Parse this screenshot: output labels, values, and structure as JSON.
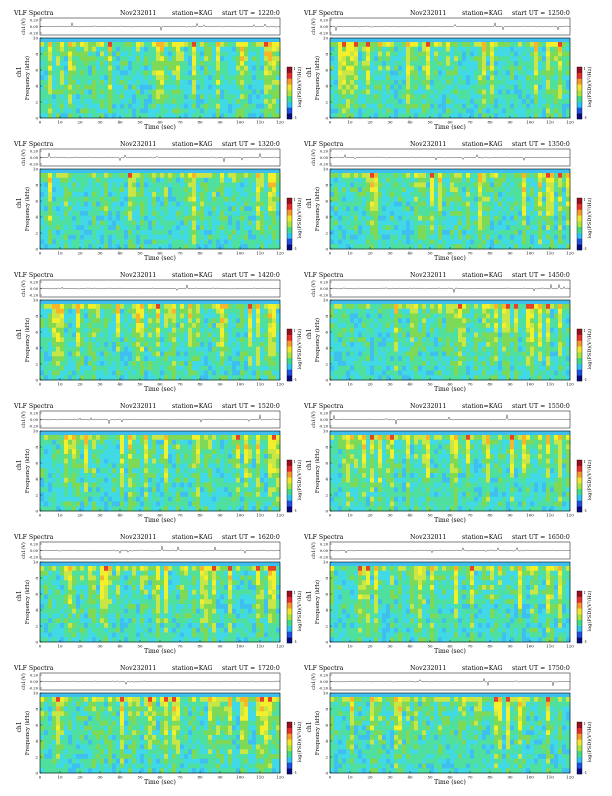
{
  "colors": {
    "background": "#ffffff",
    "axis": "#000000",
    "spectrogram_palette": [
      "#3fbfef",
      "#41d9e6",
      "#4fe0a0",
      "#7ed957",
      "#c8e645",
      "#f2f02c",
      "#f7b52a",
      "#e8412a",
      "#b11a2c"
    ],
    "colorbar_palette": [
      "#0a0a80",
      "#1f4fe0",
      "#2ec4f0",
      "#3ddc84",
      "#a8e43c",
      "#f2e62c",
      "#f59a2a",
      "#e62e2a",
      "#9a0f1f"
    ]
  },
  "panel_text": {
    "title_left": "VLF Spectra",
    "date": "Nov232011",
    "station": "station=KAG",
    "start_prefix": "start  UT  =",
    "time_label": "Time  (sec)",
    "ylabel_freq": "Frequency  (kHz)",
    "ylabel_chan": "ch1",
    "ylabel_wave": "ch1(V)",
    "colorbar_label": "log(PSD)(V²/Hz)",
    "wave_ticks": [
      "0.20",
      "0.00",
      "-0.20"
    ],
    "freq_ticks": [
      "0",
      "2",
      "4",
      "6",
      "8",
      "10"
    ],
    "time_ticks": [
      "0",
      "10",
      "20",
      "30",
      "40",
      "50",
      "60",
      "70",
      "80",
      "90",
      "100",
      "110",
      "120"
    ],
    "colorbar_ticks": [
      "1",
      "-1"
    ]
  },
  "chart_data": [
    {
      "type": "heatmap",
      "start_ut": "1220:0",
      "xlim": [
        0,
        120
      ],
      "ylim": [
        0,
        10
      ],
      "wave_ylim": [
        -0.2,
        0.2
      ],
      "colorbar_range": [
        -1,
        1
      ]
    },
    {
      "type": "heatmap",
      "start_ut": "1250:0",
      "xlim": [
        0,
        120
      ],
      "ylim": [
        0,
        10
      ],
      "wave_ylim": [
        -0.2,
        0.2
      ],
      "colorbar_range": [
        -1,
        1
      ]
    },
    {
      "type": "heatmap",
      "start_ut": "1320:0",
      "xlim": [
        0,
        120
      ],
      "ylim": [
        0,
        10
      ],
      "wave_ylim": [
        -0.2,
        0.2
      ],
      "colorbar_range": [
        -1,
        1
      ]
    },
    {
      "type": "heatmap",
      "start_ut": "1350:0",
      "xlim": [
        0,
        120
      ],
      "ylim": [
        0,
        10
      ],
      "wave_ylim": [
        -0.2,
        0.2
      ],
      "colorbar_range": [
        -1,
        1
      ]
    },
    {
      "type": "heatmap",
      "start_ut": "1420:0",
      "xlim": [
        0,
        120
      ],
      "ylim": [
        0,
        10
      ],
      "wave_ylim": [
        -0.2,
        0.2
      ],
      "colorbar_range": [
        -1,
        1
      ]
    },
    {
      "type": "heatmap",
      "start_ut": "1450:0",
      "xlim": [
        0,
        120
      ],
      "ylim": [
        0,
        10
      ],
      "wave_ylim": [
        -0.2,
        0.2
      ],
      "colorbar_range": [
        -1,
        1
      ]
    },
    {
      "type": "heatmap",
      "start_ut": "1520:0",
      "xlim": [
        0,
        120
      ],
      "ylim": [
        0,
        10
      ],
      "wave_ylim": [
        -0.2,
        0.2
      ],
      "colorbar_range": [
        -1,
        1
      ]
    },
    {
      "type": "heatmap",
      "start_ut": "1550:0",
      "xlim": [
        0,
        120
      ],
      "ylim": [
        0,
        10
      ],
      "wave_ylim": [
        -0.2,
        0.2
      ],
      "colorbar_range": [
        -1,
        1
      ]
    },
    {
      "type": "heatmap",
      "start_ut": "1620:0",
      "xlim": [
        0,
        120
      ],
      "ylim": [
        0,
        10
      ],
      "wave_ylim": [
        -0.2,
        0.2
      ],
      "colorbar_range": [
        -1,
        1
      ]
    },
    {
      "type": "heatmap",
      "start_ut": "1650:0",
      "xlim": [
        0,
        120
      ],
      "ylim": [
        0,
        10
      ],
      "wave_ylim": [
        -0.2,
        0.2
      ],
      "colorbar_range": [
        -1,
        1
      ]
    },
    {
      "type": "heatmap",
      "start_ut": "1720:0",
      "xlim": [
        0,
        120
      ],
      "ylim": [
        0,
        10
      ],
      "wave_ylim": [
        -0.2,
        0.2
      ],
      "colorbar_range": [
        -1,
        1
      ]
    },
    {
      "type": "heatmap",
      "start_ut": "1750:0",
      "xlim": [
        0,
        120
      ],
      "ylim": [
        0,
        10
      ],
      "wave_ylim": [
        -0.2,
        0.2
      ],
      "colorbar_range": [
        -1,
        1
      ]
    }
  ]
}
